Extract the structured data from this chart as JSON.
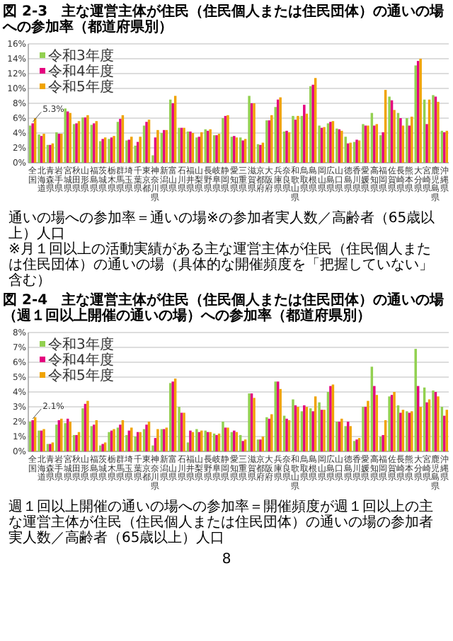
{
  "chart_data": [
    {
      "type": "bar",
      "title": "図 2-3　主な運営主体が住民（住民個人または住民団体）の通いの場への参加率（都道府県別）",
      "categories": [
        "全国",
        "北海道",
        "青森県",
        "岩手県",
        "宮城県",
        "秋田県",
        "山形県",
        "福島県",
        "茨城県",
        "栃木県",
        "群馬県",
        "埼玉県",
        "千葉県",
        "東京都",
        "神奈川県",
        "新潟県",
        "富山県",
        "石川県",
        "福井県",
        "山梨県",
        "長野県",
        "岐阜県",
        "静岡県",
        "愛知県",
        "三重県",
        "滋賀県",
        "京都府",
        "大阪府",
        "兵庫県",
        "奈良県",
        "和歌山県",
        "鳥取県",
        "島根県",
        "岡山県",
        "広島県",
        "山口県",
        "徳島県",
        "香川県",
        "愛媛県",
        "高知県",
        "福岡県",
        "佐賀県",
        "長崎県",
        "熊本県",
        "大分県",
        "宮崎県",
        "鹿児島県",
        "沖縄県"
      ],
      "series": [
        {
          "name": "令和3年度",
          "color": "#92d050",
          "values": [
            5.0,
            3.8,
            2.4,
            4.1,
            7.3,
            5.2,
            6.1,
            5.1,
            2.9,
            3.2,
            5.5,
            3.0,
            2.3,
            5.0,
            1.0,
            4.0,
            8.5,
            4.7,
            4.2,
            3.4,
            4.5,
            3.7,
            6.0,
            3.5,
            3.4,
            9.0,
            2.5,
            5.7,
            7.5,
            4.2,
            6.3,
            6.3,
            10.3,
            5.0,
            5.3,
            4.6,
            3.5,
            2.8,
            5.2,
            6.7,
            3.7,
            8.9,
            6.7,
            6.0,
            13.1,
            8.5,
            9.1,
            4.3
          ]
        },
        {
          "name": "令和4年度",
          "color": "#e4007f",
          "values": [
            5.3,
            3.6,
            2.4,
            3.9,
            6.9,
            5.3,
            6.1,
            5.3,
            3.2,
            3.4,
            5.9,
            3.1,
            2.8,
            5.5,
            3.4,
            4.4,
            8.0,
            4.7,
            4.2,
            3.5,
            4.3,
            3.7,
            6.3,
            3.6,
            3.0,
            8.0,
            2.4,
            5.7,
            8.5,
            4.3,
            5.8,
            7.8,
            10.5,
            4.7,
            5.5,
            4.5,
            2.6,
            3.1,
            5.0,
            5.0,
            4.1,
            8.4,
            6.0,
            5.0,
            13.7,
            5.2,
            8.9,
            4.1
          ]
        },
        {
          "name": "令和5年度",
          "color": "#f0a300",
          "values": [
            6.0,
            3.9,
            2.6,
            3.9,
            6.7,
            5.6,
            6.4,
            5.6,
            3.4,
            3.6,
            6.4,
            3.5,
            3.5,
            5.8,
            4.4,
            4.4,
            9.0,
            4.7,
            4.0,
            4.1,
            4.5,
            3.9,
            6.4,
            3.4,
            3.2,
            8.0,
            2.7,
            6.4,
            8.8,
            4.1,
            6.3,
            6.6,
            11.4,
            4.8,
            5.6,
            4.3,
            2.7,
            3.0,
            5.0,
            5.2,
            9.8,
            7.1,
            5.0,
            6.2,
            14.0,
            8.5,
            8.2,
            4.3
          ]
        }
      ],
      "ylim": [
        0,
        16
      ],
      "yticks": [
        {
          "value": 0,
          "label": "0%"
        },
        {
          "value": 2,
          "label": "2%"
        },
        {
          "value": 4,
          "label": "4%"
        },
        {
          "value": 6,
          "label": "6%"
        },
        {
          "value": 8,
          "label": "8%"
        },
        {
          "value": 10,
          "label": "10%"
        },
        {
          "value": 12,
          "label": "12%"
        },
        {
          "value": 14,
          "label": "14%"
        },
        {
          "value": 16,
          "label": "16%"
        }
      ],
      "grid": "y",
      "legend": "top left",
      "annotations": [
        {
          "text": "5.3%",
          "x": "全国",
          "y": 5.3
        },
        "通いの場への参加率＝通いの場※の参加者実人数／高齢者（65歳以上）人口",
        "※月１回以上の活動実績がある主な運営主体が住民（住民個人または住民団体）の通いの場（具体的な開催頻度を「把握していない」含む）"
      ]
    },
    {
      "type": "bar",
      "title": "図 2-4　主な運営主体が住民（住民個人または住民団体）の通いの場（週１回以上開催の通いの場）への参加率（都道府県別）",
      "categories": [
        "全国",
        "北海道",
        "青森県",
        "岩手県",
        "宮城県",
        "秋田県",
        "山形県",
        "福島県",
        "茨城県",
        "栃木県",
        "群馬県",
        "埼玉県",
        "千葉県",
        "東京都",
        "神奈川県",
        "新潟県",
        "富山県",
        "石川県",
        "福井県",
        "山梨県",
        "長野県",
        "岐阜県",
        "静岡県",
        "愛知県",
        "三重県",
        "滋賀県",
        "京都府",
        "大阪府",
        "兵庫県",
        "奈良県",
        "和歌山県",
        "鳥取県",
        "島根県",
        "岡山県",
        "広島県",
        "山口県",
        "徳島県",
        "香川県",
        "愛媛県",
        "高知県",
        "福岡県",
        "佐賀県",
        "長崎県",
        "熊本県",
        "大分県",
        "宮崎県",
        "鹿児島県",
        "沖縄県"
      ],
      "series": [
        {
          "name": "令和3年度",
          "color": "#92d050",
          "values": [
            2.0,
            1.4,
            0.5,
            1.8,
            1.9,
            1.1,
            2.9,
            1.7,
            0.4,
            1.3,
            1.6,
            1.1,
            1.0,
            1.5,
            0.4,
            1.5,
            4.6,
            3.0,
            0.6,
            1.5,
            1.4,
            1.2,
            2.0,
            1.3,
            1.1,
            3.9,
            0.8,
            2.3,
            4.7,
            2.4,
            3.5,
            2.7,
            2.9,
            3.3,
            4.0,
            2.0,
            1.7,
            0.7,
            3.0,
            5.7,
            1.0,
            3.7,
            3.1,
            2.7,
            6.9,
            4.3,
            4.1,
            3.0
          ]
        },
        {
          "name": "令和4年度",
          "color": "#e4007f",
          "values": [
            2.1,
            1.4,
            0.5,
            2.1,
            2.2,
            1.1,
            3.2,
            1.8,
            0.5,
            1.4,
            1.8,
            1.4,
            1.3,
            1.8,
            0.9,
            1.5,
            4.7,
            2.6,
            1.4,
            1.3,
            1.3,
            1.1,
            1.6,
            1.4,
            0.7,
            3.9,
            0.8,
            2.2,
            4.7,
            2.2,
            3.1,
            3.1,
            2.7,
            2.8,
            4.4,
            2.0,
            2.0,
            0.8,
            3.0,
            4.4,
            1.1,
            3.8,
            2.6,
            2.6,
            4.4,
            3.3,
            4.0,
            2.4
          ]
        },
        {
          "name": "令和5年度",
          "color": "#f0a300",
          "values": [
            2.3,
            1.5,
            0.6,
            2.2,
            2.0,
            1.3,
            3.4,
            2.1,
            0.6,
            1.5,
            2.1,
            1.6,
            1.3,
            2.0,
            1.5,
            1.6,
            4.9,
            2.6,
            1.3,
            1.4,
            1.3,
            1.2,
            1.6,
            1.3,
            0.8,
            3.6,
            1.0,
            2.5,
            4.2,
            2.1,
            3.0,
            3.0,
            3.7,
            2.8,
            4.5,
            2.2,
            1.7,
            0.9,
            3.4,
            3.8,
            2.1,
            4.0,
            2.8,
            2.7,
            3.0,
            3.5,
            3.7,
            2.8
          ]
        }
      ],
      "ylim": [
        0,
        8
      ],
      "yticks": [
        {
          "value": 0,
          "label": "0%"
        },
        {
          "value": 1,
          "label": "1%"
        },
        {
          "value": 2,
          "label": "2%"
        },
        {
          "value": 3,
          "label": "3%"
        },
        {
          "value": 4,
          "label": "4%"
        },
        {
          "value": 5,
          "label": "5%"
        },
        {
          "value": 6,
          "label": "6%"
        },
        {
          "value": 7,
          "label": "7%"
        },
        {
          "value": 8,
          "label": "8%"
        }
      ],
      "grid": "y",
      "legend": "top left",
      "annotations": [
        {
          "text": "2.1%",
          "x": "全国",
          "y": 2.1
        },
        "週１回以上開催の通いの場への参加率＝開催頻度が週１回以上の主な運営主体が住民（住民個人または住民団体）の通いの場の参加者実人数／高齢者（65歳以上）人口",
        "8"
      ]
    }
  ]
}
